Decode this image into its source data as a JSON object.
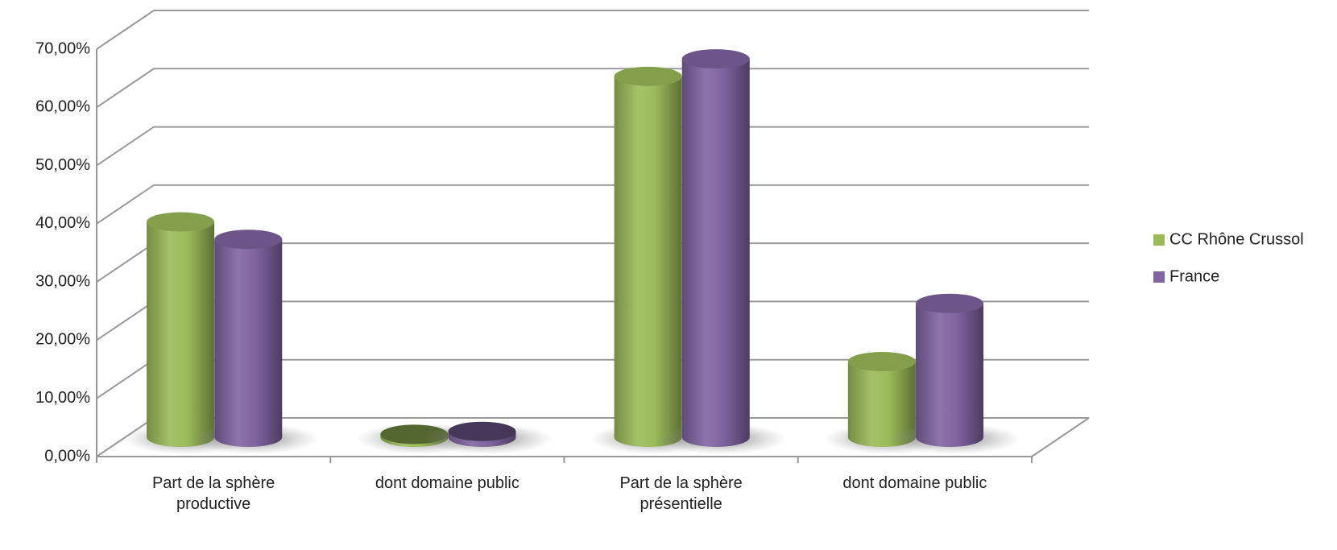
{
  "chart_data": {
    "type": "bar3d",
    "categories": [
      "Part de la sphère productive",
      "dont domaine public",
      "Part de la sphère présentielle",
      "dont domaine public"
    ],
    "series": [
      {
        "name": "CC Rhône Crussol",
        "color": "#9bbb59",
        "values": [
          37,
          0.5,
          62,
          13
        ]
      },
      {
        "name": "France",
        "color": "#8064a2",
        "values": [
          34,
          1,
          65,
          23
        ]
      }
    ],
    "ylim": [
      0,
      70
    ],
    "yticks": [
      {
        "value": 0,
        "label": "0,00%"
      },
      {
        "value": 10,
        "label": "10,00%"
      },
      {
        "value": 20,
        "label": "20,00%"
      },
      {
        "value": 30,
        "label": "30,00%"
      },
      {
        "value": 40,
        "label": "40,00%"
      },
      {
        "value": 50,
        "label": "50,00%"
      },
      {
        "value": 60,
        "label": "60,00%"
      },
      {
        "value": 70,
        "label": "70,00%"
      }
    ],
    "grid": true,
    "legend": "right"
  }
}
